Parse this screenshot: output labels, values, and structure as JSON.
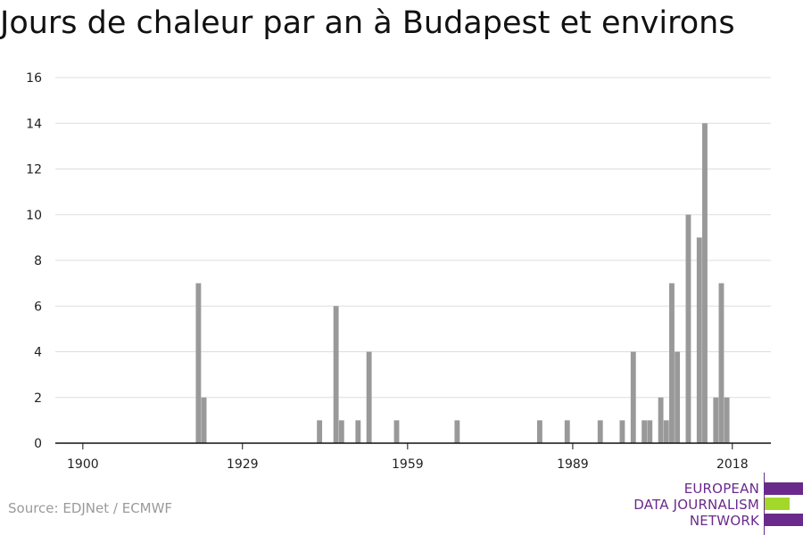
{
  "chart_data": {
    "type": "bar",
    "title": "Jours de chaleur par an à Budapest et environs",
    "xlabel": "",
    "ylabel": "",
    "xlim": [
      1895,
      2025
    ],
    "ylim": [
      0,
      16
    ],
    "y_ticks": [
      0,
      2,
      4,
      6,
      8,
      10,
      12,
      14,
      16
    ],
    "x_ticks": [
      1900,
      1929,
      1959,
      1989,
      2018
    ],
    "grid": true,
    "legend": "none",
    "bar_color": "#999999",
    "x": [
      1921,
      1922,
      1943,
      1946,
      1947,
      1950,
      1952,
      1957,
      1968,
      1983,
      1988,
      1994,
      1998,
      2000,
      2002,
      2003,
      2005,
      2006,
      2007,
      2008,
      2010,
      2012,
      2013,
      2015,
      2016,
      2017,
      2018
    ],
    "values": [
      7,
      2,
      1,
      6,
      1,
      1,
      4,
      1,
      1,
      1,
      1,
      1,
      1,
      4,
      1,
      1,
      2,
      1,
      7,
      4,
      10,
      9,
      14,
      2,
      7,
      2,
      0
    ]
  },
  "footer": {
    "source": "Source: EDJNet / ECMWF"
  },
  "logo": {
    "line1": "EUROPEAN",
    "line2": "DATA JOURNALISM",
    "line3": "NETWORK",
    "purple": "#6a2a8c",
    "green": "#a3d82b"
  }
}
